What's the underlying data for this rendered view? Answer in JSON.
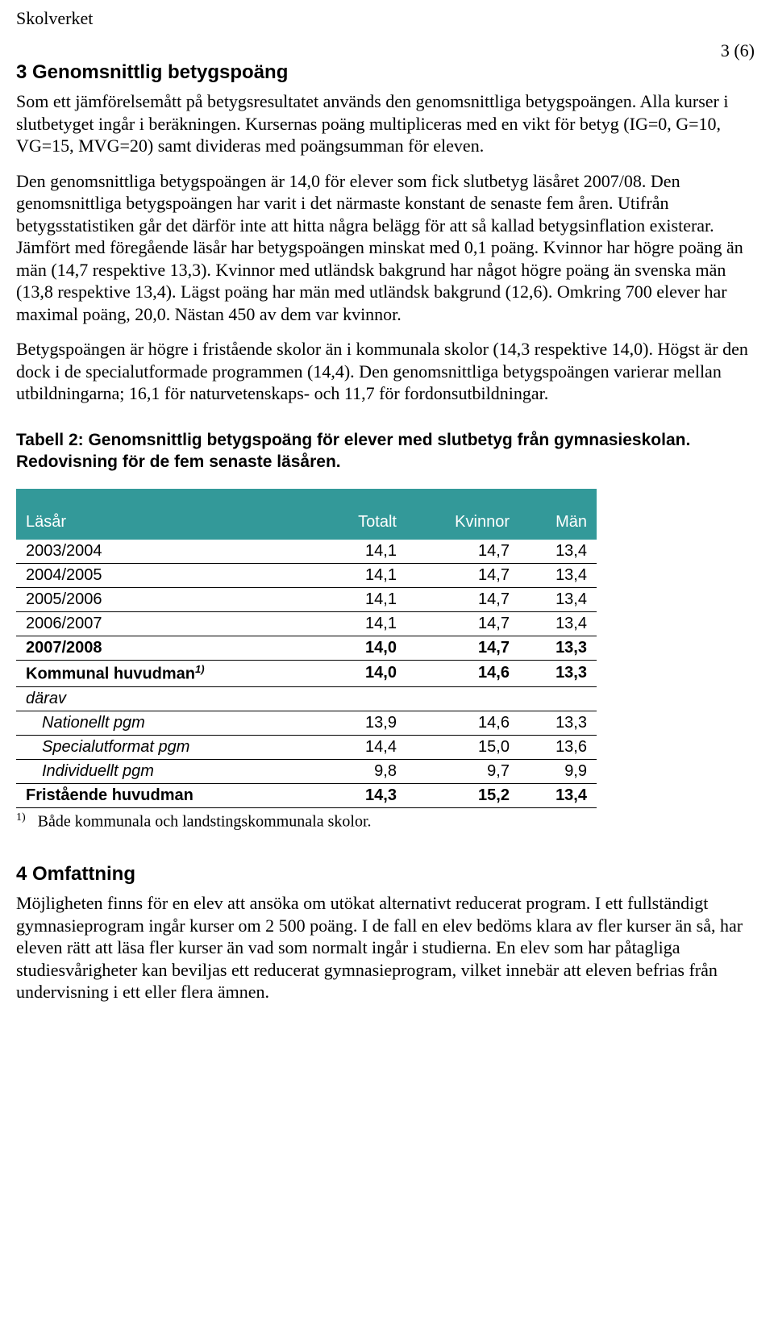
{
  "header": {
    "org": "Skolverket",
    "page_num": "3 (6)"
  },
  "section3": {
    "heading": "3 Genomsnittlig betygspoäng",
    "p1": "Som ett jämförelsemått på betygsresultatet används den genomsnittliga betygspoängen. Alla kurser i slutbetyget ingår i beräkningen. Kursernas poäng multipliceras med en vikt för betyg (IG=0, G=10, VG=15, MVG=20) samt divideras med poängsumman för eleven.",
    "p2": "Den genomsnittliga betygspoängen är 14,0 för elever som fick slutbetyg läsåret 2007/08. Den genomsnittliga betygspoängen har varit i det närmaste konstant de senaste fem åren. Utifrån betygsstatistiken går det därför inte att hitta några belägg för att så kallad betygsinflation existerar. Jämfört med föregående läsår har betygspoängen minskat med 0,1 poäng. Kvinnor har högre poäng än män (14,7 respektive 13,3). Kvinnor med utländsk bakgrund har något högre poäng än svenska män (13,8 respektive 13,4). Lägst poäng har män med utländsk bakgrund (12,6). Omkring 700 elever har maximal poäng, 20,0. Nästan 450 av dem var kvinnor.",
    "p3": "Betygspoängen är högre i fristående skolor än i kommunala skolor (14,3 respektive 14,0). Högst är den dock i de specialutformade programmen (14,4). Den genomsnittliga betygspoängen varierar mellan utbildningarna; 16,1 för naturvetenskaps- och 11,7 för fordonsutbildningar."
  },
  "table2": {
    "caption": "Tabell 2: Genomsnittlig betygspoäng för elever med slutbetyg från gymnasieskolan. Redovisning för de fem senaste läsåren.",
    "columns": [
      "Läsår",
      "Totalt",
      "Kvinnor",
      "Män"
    ],
    "header_bg": "#339999",
    "header_fg": "#ffffff",
    "rows": [
      {
        "label": "2003/2004",
        "totalt": "14,1",
        "kvinnor": "14,7",
        "man": "13,4",
        "style": ""
      },
      {
        "label": "2004/2005",
        "totalt": "14,1",
        "kvinnor": "14,7",
        "man": "13,4",
        "style": ""
      },
      {
        "label": "2005/2006",
        "totalt": "14,1",
        "kvinnor": "14,7",
        "man": "13,4",
        "style": ""
      },
      {
        "label": "2006/2007",
        "totalt": "14,1",
        "kvinnor": "14,7",
        "man": "13,4",
        "style": ""
      },
      {
        "label": "2007/2008",
        "totalt": "14,0",
        "kvinnor": "14,7",
        "man": "13,3",
        "style": "bold"
      },
      {
        "label": "Kommunal huvudman",
        "sup": "1)",
        "totalt": "14,0",
        "kvinnor": "14,6",
        "man": "13,3",
        "style": "bold"
      },
      {
        "label": "därav",
        "totalt": "",
        "kvinnor": "",
        "man": "",
        "style": "italic"
      },
      {
        "label": "Nationellt pgm",
        "totalt": "13,9",
        "kvinnor": "14,6",
        "man": "13,3",
        "style": "indent"
      },
      {
        "label": "Specialutformat pgm",
        "totalt": "14,4",
        "kvinnor": "15,0",
        "man": "13,6",
        "style": "indent"
      },
      {
        "label": "Individuellt pgm",
        "totalt": "9,8",
        "kvinnor": "9,7",
        "man": "9,9",
        "style": "indent"
      },
      {
        "label": "Fristående huvudman",
        "totalt": "14,3",
        "kvinnor": "15,2",
        "man": "13,4",
        "style": "bold"
      }
    ],
    "footnote_ref": "1)",
    "footnote": "Både kommunala och landstingskommunala skolor."
  },
  "section4": {
    "heading": "4 Omfattning",
    "p1": "Möjligheten finns för en elev att ansöka om utökat alternativt reducerat program. I ett fullständigt gymnasieprogram ingår kurser om 2 500 poäng. I de fall en elev bedöms klara av fler kurser än så, har eleven rätt att läsa fler kurser än vad som normalt ingår i studierna. En elev som har påtagliga studiesvårigheter kan beviljas ett reducerat gymnasieprogram, vilket innebär att eleven befrias från undervisning i ett eller flera ämnen."
  }
}
